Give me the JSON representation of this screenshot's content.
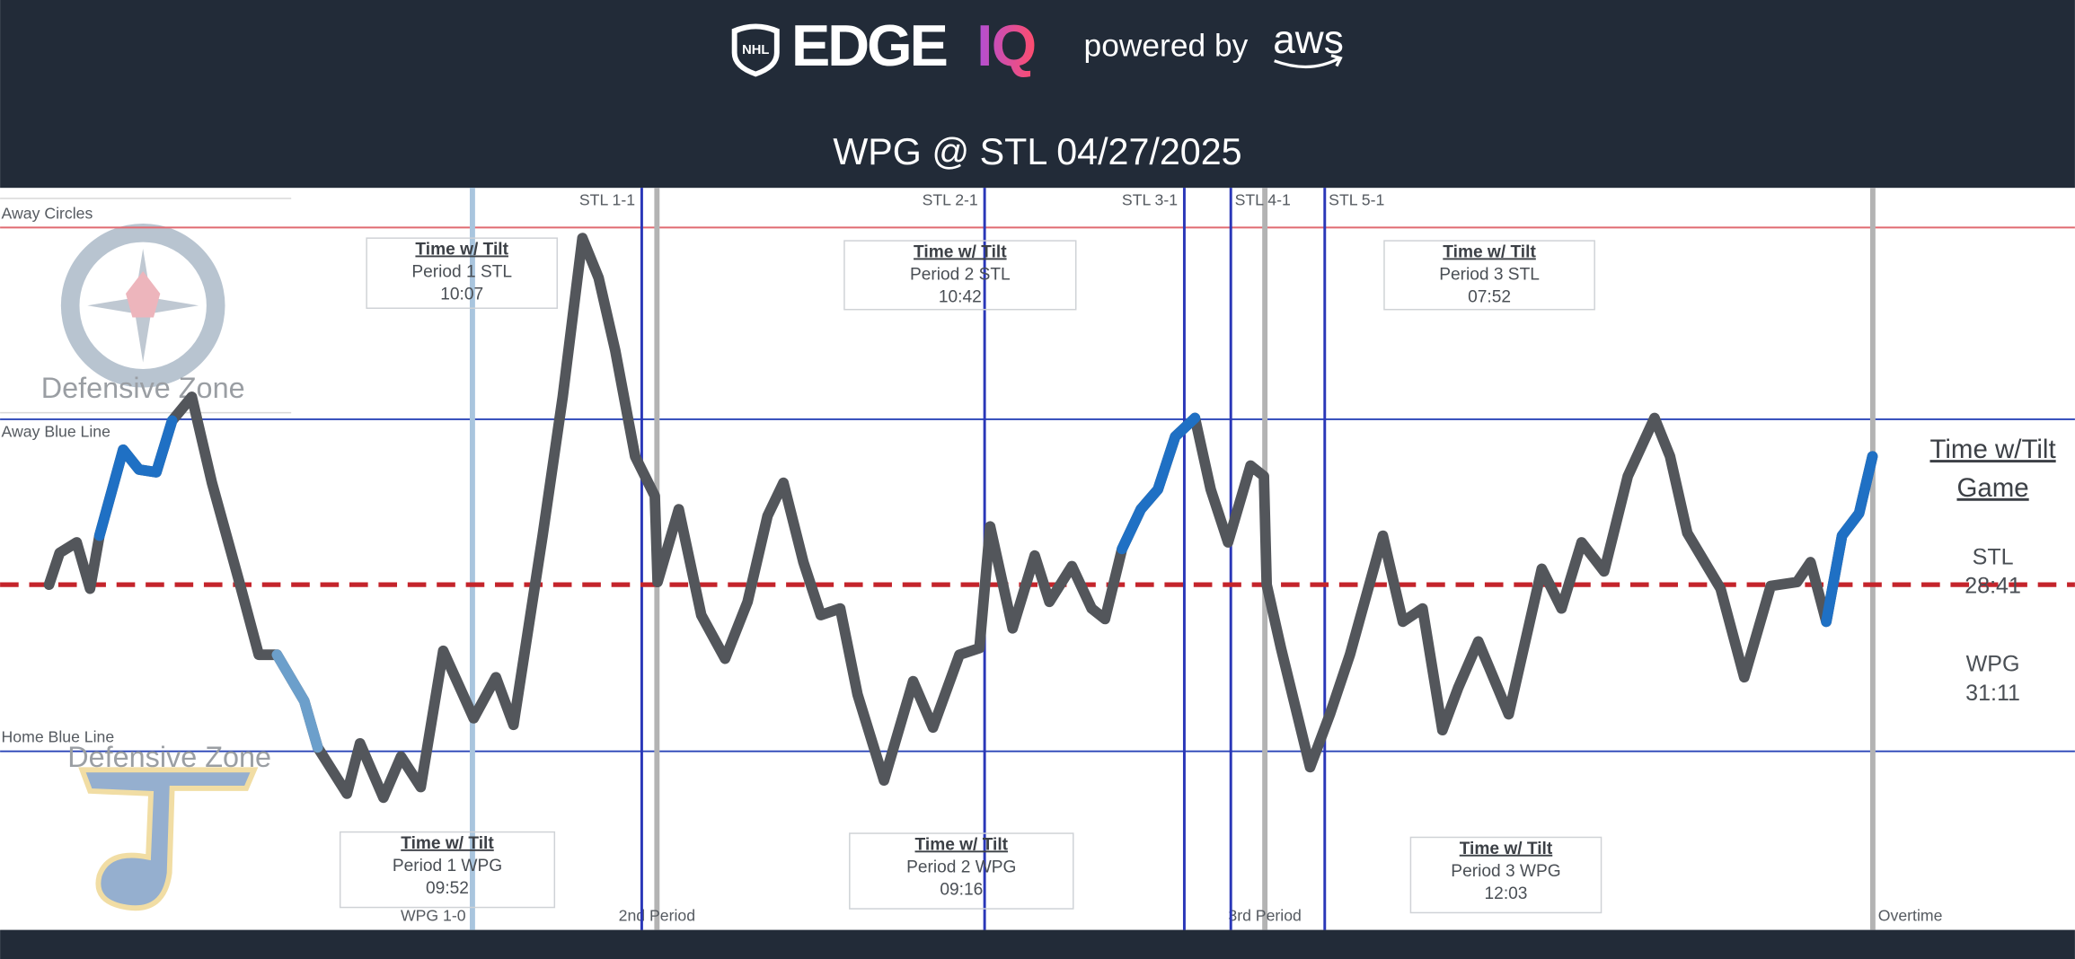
{
  "header": {
    "brand": "EDGE",
    "brand_accent": "IQ",
    "powered_by": "powered by",
    "partner": "aws",
    "title": "WPG @ STL 04/27/2025"
  },
  "chart_data": {
    "type": "line",
    "xlim": [
      -1.61,
      66.65
    ],
    "ylim": [
      -261,
      300
    ],
    "reference_lines": [
      {
        "label": "Away Circles",
        "value": 270,
        "color": "#e06a72"
      },
      {
        "label": "Away Blue Line",
        "value": 125,
        "color": "#2b46b8"
      },
      {
        "label": "Home Blue Line",
        "value": -126,
        "color": "#2b46b8"
      }
    ],
    "center_line": {
      "value": 0,
      "color": "#c4242b"
    },
    "zone_labels": [
      "Defensive Zone",
      "Defensive Zone"
    ],
    "events": [
      {
        "label": "WPG 1-0",
        "x": 13.93,
        "color": "#a9c5de"
      },
      {
        "label": "STL 1-1",
        "x": 19.5,
        "color": "#2a37b8"
      },
      {
        "label": "STL 2-1",
        "x": 30.78,
        "color": "#2a37b8"
      },
      {
        "label": "STL 3-1",
        "x": 37.35,
        "color": "#2a37b8"
      },
      {
        "label": "STL 4-1",
        "x": 38.88,
        "color": "#2a37b8"
      },
      {
        "label": "STL 5-1",
        "x": 41.97,
        "color": "#2a37b8"
      }
    ],
    "periods": [
      {
        "label": "2nd Period",
        "x": 20,
        "color": "#b3b3b3"
      },
      {
        "label": "3rd Period",
        "x": 40,
        "color": "#b3b3b3"
      },
      {
        "label": "Overtime",
        "x": 60,
        "color": "#b3b3b3"
      }
    ],
    "x": [
      0,
      0.35,
      0.91,
      1.35,
      1.66,
      2.44,
      2.96,
      3.53,
      4.05,
      4.7,
      5.36,
      6.26,
      6.9,
      7.5,
      8.4,
      8.84,
      9.8,
      10.23,
      11.0,
      11.58,
      12.23,
      12.97,
      13.97,
      14.7,
      15.28,
      16.24,
      16.9,
      17.55,
      18.08,
      18.63,
      19.28,
      19.93,
      20.02,
      20.72,
      21.46,
      22.24,
      22.98,
      23.64,
      24.16,
      24.82,
      25.39,
      26.03,
      26.6,
      27.47,
      28.43,
      29.08,
      29.95,
      30.61,
      30.96,
      31.7,
      32.43,
      32.91,
      33.65,
      34.3,
      34.74,
      35.3,
      35.92,
      36.48,
      37.05,
      37.7,
      38.22,
      38.79,
      39.53,
      39.97,
      40.06,
      40.53,
      41.49,
      42.14,
      42.8,
      43.88,
      44.54,
      45.19,
      45.84,
      46.36,
      47.02,
      48.02,
      49.11,
      49.76,
      50.42,
      51.16,
      51.94,
      52.82,
      53.33,
      53.9,
      54.99,
      55.77,
      56.64,
      57.51,
      57.95,
      58.47,
      58.99,
      59.55,
      59.99
    ],
    "series": [
      {
        "color": "#53565b",
        "values": [
          0,
          24,
          32,
          -3,
          37,
          102,
          87,
          85,
          124,
          142,
          77,
          2,
          -53,
          -53,
          -88,
          -123,
          -158,
          -120,
          -161,
          -130,
          -153,
          -50,
          -101,
          -70,
          -106,
          37,
          142,
          262,
          232,
          177,
          97,
          67,
          2,
          57,
          -23,
          -56,
          -13,
          52,
          77,
          17,
          -23,
          -18,
          -83,
          -148,
          -73,
          -108,
          -53,
          -48,
          44,
          -33,
          22,
          -13,
          14,
          -18,
          -26,
          27,
          57,
          72,
          112,
          126,
          72,
          32,
          90,
          82,
          0,
          -48,
          -138,
          -98,
          -53,
          37,
          -28,
          -18,
          -110,
          -78,
          -43,
          -98,
          12,
          -18,
          32,
          10,
          82,
          126,
          97,
          39,
          -3,
          -70,
          -1,
          2,
          17,
          -28,
          37,
          54,
          97
        ]
      },
      {
        "color": "#1f70c4",
        "values": [
          null,
          null,
          null,
          null,
          37,
          102,
          87,
          85,
          124,
          null,
          null,
          null,
          null,
          null,
          null,
          null,
          null,
          null,
          null,
          null,
          null,
          null,
          null,
          null,
          null,
          null,
          null,
          null,
          null,
          null,
          null,
          null,
          null,
          null,
          null,
          null,
          null,
          null,
          null,
          null,
          null,
          null,
          null,
          null,
          null,
          null,
          null,
          null,
          null,
          null,
          null,
          null,
          null,
          null,
          null,
          27,
          57,
          72,
          112,
          126,
          null,
          null,
          null,
          null,
          null,
          null,
          null,
          null,
          null,
          null,
          null,
          null,
          null,
          null,
          null,
          null,
          null,
          null,
          null,
          null,
          null,
          null,
          null,
          null,
          null,
          null,
          null,
          null,
          null,
          -28,
          37,
          54,
          97
        ]
      },
      {
        "color": "#6c9fcb",
        "values": [
          null,
          null,
          null,
          null,
          null,
          null,
          null,
          null,
          null,
          null,
          null,
          null,
          null,
          -53,
          -88,
          -123,
          null,
          null,
          null,
          null,
          null,
          null,
          null,
          null,
          null,
          null,
          null,
          null,
          null,
          null,
          null,
          null,
          null,
          null,
          null,
          null,
          null,
          null,
          null,
          null,
          null,
          null,
          null,
          null,
          null,
          null,
          null,
          null,
          null,
          null,
          null,
          null,
          null,
          null,
          null,
          null,
          null,
          null,
          null,
          null,
          null,
          null,
          null,
          null,
          null,
          null,
          null,
          null,
          null,
          null,
          null,
          null,
          null,
          null,
          null,
          null,
          null,
          null,
          null,
          null,
          null,
          null,
          null,
          null,
          null,
          null,
          null,
          null,
          null,
          null,
          null,
          null,
          null
        ]
      }
    ],
    "period_boxes": [
      {
        "heading": "Time w/ Tilt",
        "label": "Period 1 STL",
        "time": "10:07"
      },
      {
        "heading": "Time w/ Tilt",
        "label": "Period 2 STL",
        "time": "10:42"
      },
      {
        "heading": "Time w/ Tilt",
        "label": "Period 3 STL",
        "time": "07:52"
      },
      {
        "heading": "Time w/ Tilt",
        "label": "Period 1 WPG",
        "time": "09:52"
      },
      {
        "heading": "Time w/ Tilt",
        "label": "Period 2 WPG",
        "time": "09:16"
      },
      {
        "heading": "Time w/ Tilt",
        "label": "Period 3 WPG",
        "time": "12:03"
      }
    ],
    "game_summary": {
      "heading": [
        "Time w/Tilt",
        "Game"
      ],
      "teams": [
        {
          "team": "STL",
          "time": "28:41"
        },
        {
          "team": "WPG",
          "time": "31:11"
        }
      ]
    }
  }
}
